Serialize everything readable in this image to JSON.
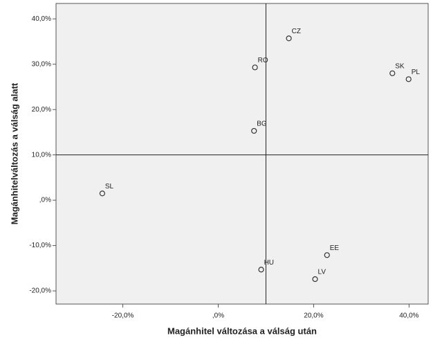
{
  "chart_data": {
    "type": "scatter",
    "xlabel": "Magánhitel változása a válság után",
    "ylabel": "Magánhitelváltozás a válság alatt",
    "labels": [
      "CZ",
      "RO",
      "SK",
      "PL",
      "BG",
      "SL",
      "EE",
      "HU",
      "LV"
    ],
    "x": [
      14.8,
      7.7,
      36.5,
      39.9,
      7.5,
      -24.3,
      22.8,
      9.0,
      20.3
    ],
    "values": [
      35.7,
      29.3,
      28.0,
      26.7,
      15.3,
      1.5,
      -12.1,
      -15.3,
      -17.4
    ],
    "color": "#333333",
    "xlim": [
      -34,
      44
    ],
    "ylim": [
      -22.9,
      43.4
    ],
    "xticks": [
      {
        "value": -20,
        "label": "-20,0%"
      },
      {
        "value": 0,
        "label": ",0%"
      },
      {
        "value": 20,
        "label": "20,0%"
      },
      {
        "value": 40,
        "label": "40,0%"
      }
    ],
    "yticks": [
      {
        "value": -20,
        "label": "-20,0%"
      },
      {
        "value": -10,
        "label": "-10,0%"
      },
      {
        "value": 0,
        "label": ",0%"
      },
      {
        "value": 10,
        "label": "10,0%"
      },
      {
        "value": 20,
        "label": "20,0%"
      },
      {
        "value": 30,
        "label": "30,0%"
      },
      {
        "value": 40,
        "label": "40,0%"
      }
    ],
    "xref": 10,
    "yref": 10
  }
}
